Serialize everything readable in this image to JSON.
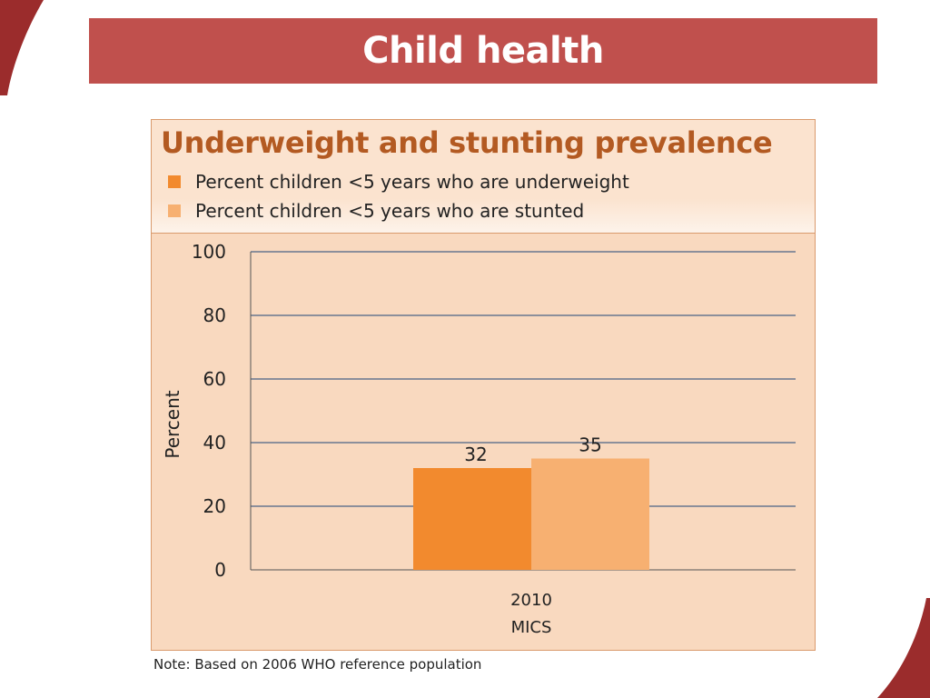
{
  "slide": {
    "title": "Child health",
    "note": "Note: Based on 2006 WHO reference population"
  },
  "colors": {
    "title_bar": "#c0504d",
    "chart_title": "#b35a22",
    "underweight": "#f28a2e",
    "stunted": "#f7b071",
    "plot_bg": "#f9d9bf",
    "gridline": "#8c8f9b"
  },
  "chart_data": {
    "type": "bar",
    "title": "Underweight and stunting prevalence",
    "ylabel": "Percent",
    "xlabel": "",
    "ylim": [
      0,
      100
    ],
    "yticks": [
      0,
      20,
      40,
      60,
      80,
      100
    ],
    "grid": true,
    "legend_position": "top-left",
    "categories": [
      "2010\nMICS"
    ],
    "category_lines": [
      [
        "2010",
        "MICS"
      ]
    ],
    "series": [
      {
        "name": "Percent children <5 years who are underweight",
        "values": [
          32
        ],
        "color": "#f28a2e"
      },
      {
        "name": "Percent children <5 years who are stunted",
        "values": [
          35
        ],
        "color": "#f7b071"
      }
    ]
  }
}
